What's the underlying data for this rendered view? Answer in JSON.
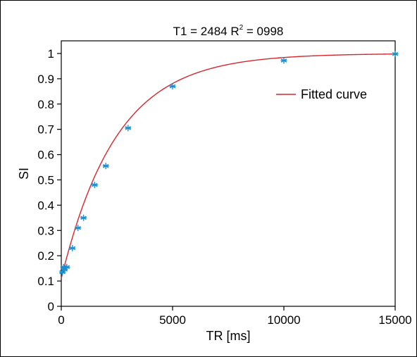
{
  "chart_data": {
    "type": "scatter",
    "title_parts": {
      "prefix": "T1 = 2484 R",
      "superscript": "2",
      "suffix": " = 0998"
    },
    "xlabel": "TR [ms]",
    "ylabel": "SI",
    "xlim": [
      0,
      15000
    ],
    "ylim": [
      0,
      1.05
    ],
    "x_ticks": [
      "0",
      "5000",
      "10000",
      "15000"
    ],
    "y_ticks": [
      "0",
      "0.1",
      "0.2",
      "0.3",
      "0.4",
      "0.5",
      "0.6",
      "0.7",
      "0.8",
      "0.9",
      "1"
    ],
    "grid": false,
    "legend_position": "top-right",
    "series": [
      {
        "kind": "markers",
        "marker": "asterisk",
        "color": "#1a8fd1",
        "x": [
          50,
          100,
          150,
          250,
          500,
          750,
          1000,
          1500,
          2000,
          3000,
          5000,
          10000,
          15000
        ],
        "y": [
          0.135,
          0.155,
          0.145,
          0.155,
          0.23,
          0.31,
          0.35,
          0.48,
          0.555,
          0.705,
          0.87,
          0.972,
          0.998
        ]
      },
      {
        "kind": "line",
        "name": "Fitted curve",
        "color": "#d7262e",
        "model": "saturation-recovery",
        "T1": 2484,
        "S0": 1.0,
        "offset": 0.11
      }
    ]
  }
}
